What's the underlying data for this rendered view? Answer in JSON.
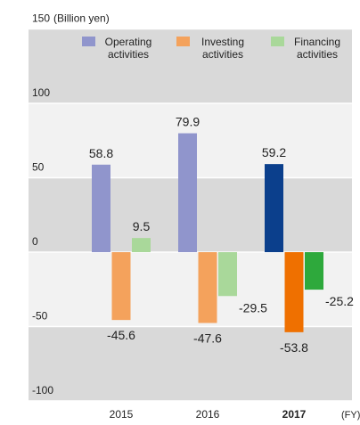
{
  "chart_data": {
    "type": "bar",
    "y_label": "(Billion yen)",
    "x_label": "(FY)",
    "categories": [
      "2015",
      "2016",
      "2017"
    ],
    "highlight": 2,
    "series": [
      {
        "name": "Operating activities",
        "color": "#9095cc",
        "colors": [
          "#9095cc",
          "#9095cc",
          "#0b3f8c"
        ],
        "values": [
          58.8,
          79.9,
          59.2
        ]
      },
      {
        "name": "Investing activities",
        "color": "#f4a25c",
        "colors": [
          "#f4a25c",
          "#f4a25c",
          "#ef7000"
        ],
        "values": [
          -45.6,
          -47.6,
          -53.8
        ]
      },
      {
        "name": "Financing activities",
        "color": "#a9d89a",
        "colors": [
          "#a9d89a",
          "#a9d89a",
          "#2ea93c"
        ],
        "values": [
          9.5,
          -29.5,
          -25.2
        ]
      }
    ],
    "ylim": [
      -100,
      150
    ],
    "yticks": [
      -100,
      -50,
      0,
      50,
      100,
      150
    ]
  }
}
